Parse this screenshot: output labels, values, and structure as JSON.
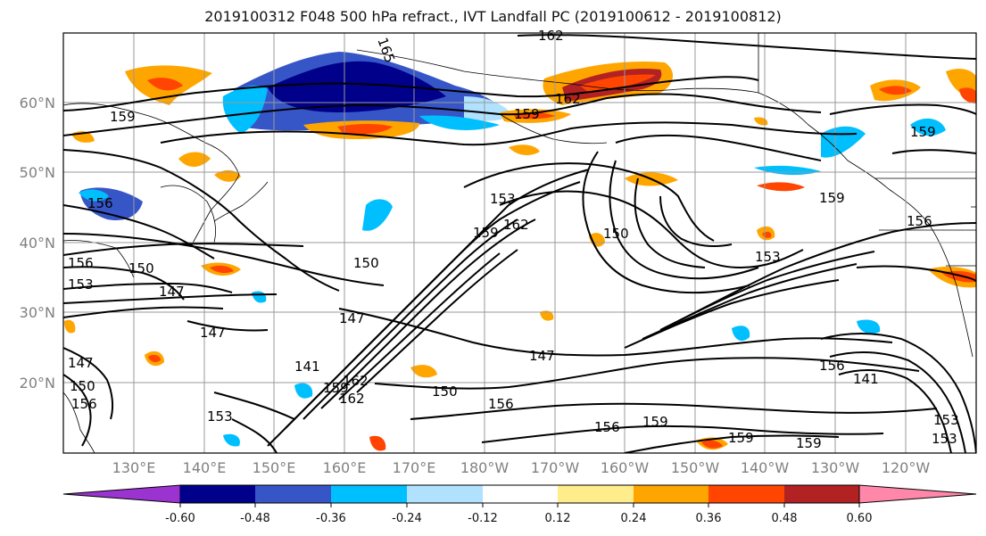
{
  "title": "2019100312 F048 500 hPa refract., IVT Landfall PC (2019100612 - 2019100812)",
  "lat_labels": [
    "60°N",
    "50°N",
    "40°N",
    "30°N",
    "20°N"
  ],
  "lon_labels": [
    "130°E",
    "140°E",
    "150°E",
    "160°E",
    "170°E",
    "180°W",
    "170°W",
    "160°W",
    "150°W",
    "140°W",
    "130°W",
    "120°W"
  ],
  "colorbar": {
    "colors": [
      "#9a33d0",
      "#00008b",
      "#3656c8",
      "#00bfff",
      "#b0e2ff",
      "#ffffff",
      "#ffec8b",
      "#ffa500",
      "#ff4500",
      "#b22222",
      "#ff88aa"
    ],
    "tick_labels": [
      "-0.60",
      "-0.48",
      "-0.36",
      "-0.24",
      "-0.12",
      "0.12",
      "0.24",
      "0.36",
      "0.48",
      "0.60"
    ]
  },
  "contour_labels": [
    "162",
    "165",
    "159",
    "159",
    "162",
    "159",
    "159",
    "156",
    "156",
    "153",
    "162",
    "159",
    "150",
    "150",
    "153",
    "156",
    "150",
    "153",
    "147",
    "147",
    "147",
    "150",
    "147",
    "156",
    "156",
    "156",
    "159",
    "159",
    "162",
    "153",
    "153",
    "141",
    "141",
    "147",
    "150",
    "156",
    "153",
    "159",
    "159",
    "162"
  ],
  "colors": {
    "contour": "#000000",
    "grid": "#999999",
    "coast": "#000000"
  }
}
